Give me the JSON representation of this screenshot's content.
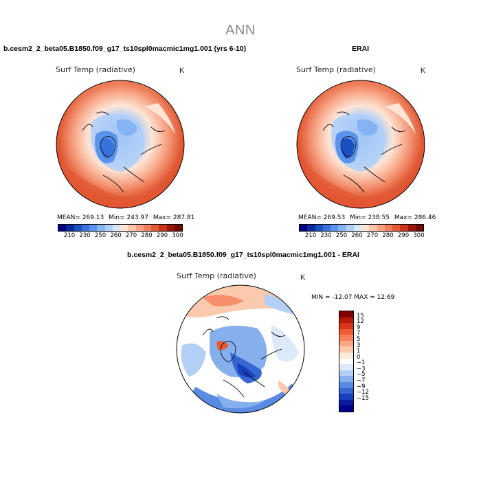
{
  "page": {
    "title": "ANN"
  },
  "panels": [
    {
      "case_title": "b.cesm2_2_beta05.B1850.f09_g17_ts10spl0macmic1mg1.001 (yrs 6-10)",
      "variable": "Surf Temp (radiative)",
      "units": "K",
      "stats": {
        "mean": "MEAN= 269.13",
        "min": "Min= 243.97",
        "max": "Max= 287.81"
      }
    },
    {
      "case_title": "ERAI",
      "variable": "Surf Temp (radiative)",
      "units": "K",
      "stats": {
        "mean": "MEAN= 269.53",
        "min": "Min= 238.55",
        "max": "Max= 286.46"
      }
    },
    {
      "case_title": "b.cesm2_2_beta05.B1850.f09_g17_ts10spl0macmic1mg1.001 - ERAI",
      "variable": "Surf Temp (radiative)",
      "units": "K",
      "stats": {
        "minmax": "MIN = -12.07 MAX =  12.69"
      }
    }
  ],
  "colorbar_abs": {
    "tick_labels": [
      "210",
      "230",
      "250",
      "260",
      "270",
      "280",
      "290",
      "300"
    ],
    "colors": [
      "#00007f",
      "#0a2a9e",
      "#1c4fc2",
      "#3672da",
      "#5a94ea",
      "#86b4f2",
      "#b0cff8",
      "#d8e7fc",
      "#fde5d6",
      "#fbc5ac",
      "#f7a282",
      "#f07e5a",
      "#e25a35",
      "#c93419",
      "#9a1608",
      "#6e0a02"
    ]
  },
  "colorbar_diff": {
    "labels": [
      "15",
      "12",
      "9",
      "7",
      "5",
      "3",
      "1",
      "0",
      "-1",
      "-3",
      "-5",
      "-7",
      "-9",
      "-12",
      "-15"
    ],
    "colors": [
      "#800000",
      "#b31a08",
      "#d8361a",
      "#ee5a31",
      "#f6805a",
      "#f9a684",
      "#fbcaae",
      "#fde8dc",
      "#ffffff",
      "#dce9fb",
      "#b4cff6",
      "#86afee",
      "#5a8be3",
      "#3566d2",
      "#1a3fbd",
      "#0a1c9e",
      "#00008b"
    ]
  },
  "chart_data": [
    {
      "type": "heatmap",
      "projection": "north polar stereographic",
      "title": "Surf Temp (radiative)",
      "units": "K",
      "case": "b.cesm2_2_beta05.B1850.f09_g17_ts10spl0macmic1mg1.001 (yrs 6-10)",
      "mean": 269.13,
      "min": 243.97,
      "max": 287.81,
      "contour_levels": [
        210,
        220,
        230,
        240,
        250,
        255,
        260,
        265,
        270,
        275,
        280,
        285,
        290,
        295,
        300
      ]
    },
    {
      "type": "heatmap",
      "projection": "north polar stereographic",
      "title": "Surf Temp (radiative)",
      "units": "K",
      "case": "ERAI",
      "mean": 269.53,
      "min": 238.55,
      "max": 286.46,
      "contour_levels": [
        210,
        220,
        230,
        240,
        250,
        255,
        260,
        265,
        270,
        275,
        280,
        285,
        290,
        295,
        300
      ]
    },
    {
      "type": "heatmap",
      "projection": "north polar stereographic",
      "title": "Surf Temp (radiative)",
      "units": "K",
      "case": "b.cesm2_2_beta05.B1850.f09_g17_ts10spl0macmic1mg1.001 - ERAI",
      "min": -12.07,
      "max": 12.69,
      "contour_levels": [
        -15,
        -12,
        -9,
        -7,
        -5,
        -3,
        -1,
        0,
        1,
        3,
        5,
        7,
        9,
        12,
        15
      ]
    }
  ]
}
